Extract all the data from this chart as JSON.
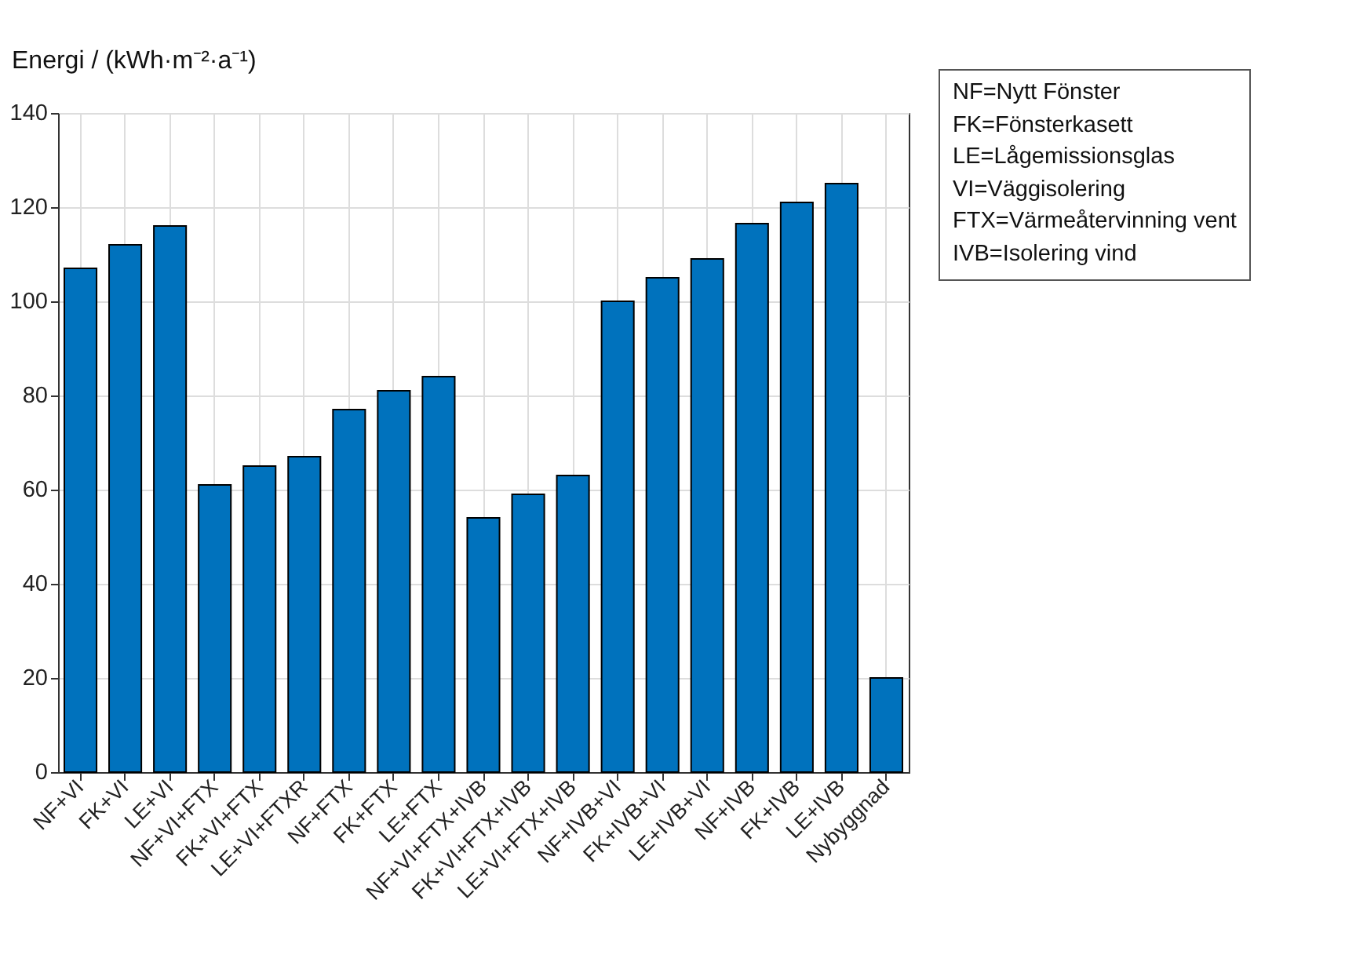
{
  "chart_data": {
    "type": "bar",
    "ylabel": "Energi / (kWh·m⁻²·a⁻¹)",
    "categories": [
      "NF+VI",
      "FK+VI",
      "LE+VI",
      "NF+VI+FTX",
      "FK+VI+FTX",
      "LE+VI+FTXR",
      "NF+FTX",
      "FK+FTX",
      "LE+FTX",
      "NF+VI+FTX+IVB",
      "FK+VI+FTX+IVB",
      "LE+VI+FTX+IVB",
      "NF+IVB+VI",
      "FK+IVB+VI",
      "LE+IVB+VI",
      "NF+IVB",
      "FK+IVB",
      "LE+IVB",
      "Nybyggnad"
    ],
    "values": [
      107,
      112,
      116,
      61,
      65,
      67,
      77,
      81,
      84,
      54,
      59,
      63,
      100,
      105,
      109,
      116.5,
      121,
      125,
      20
    ],
    "color": "#0072bd",
    "ylim": [
      0,
      140
    ],
    "yticks": [
      0,
      20,
      40,
      60,
      80,
      100,
      120,
      140
    ],
    "grid": true,
    "annotations": [
      "NF=Nytt Fönster",
      "FK=Fönsterkasett",
      "LE=Lågemissionsglas",
      "VI=Väggisolering",
      "FTX=Värmeåtervinning vent",
      "IVB=Isolering vind"
    ]
  }
}
